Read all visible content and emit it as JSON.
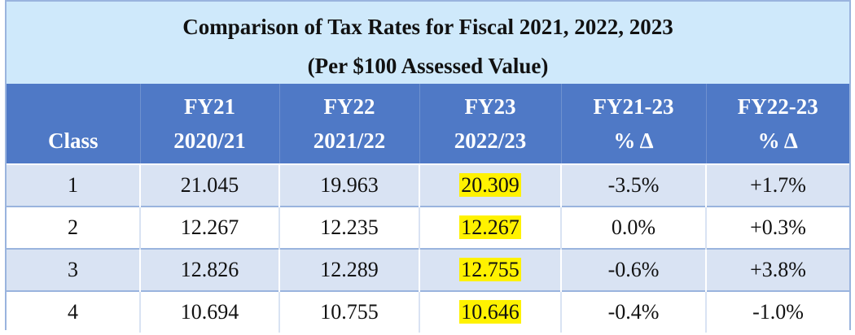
{
  "title": {
    "line1": "Comparison of Tax Rates for Fiscal 2021, 2022, 2023",
    "line2": "(Per $100 Assessed Value)"
  },
  "headers": {
    "class": "Class",
    "fy21_top": "FY21",
    "fy21_bottom": "2020/21",
    "fy22_top": "FY22",
    "fy22_bottom": "2021/22",
    "fy23_top": "FY23",
    "fy23_bottom": "2022/23",
    "chg2123_top": "FY21-23",
    "chg2123_bottom": "% Δ",
    "chg2223_top": "FY22-23",
    "chg2223_bottom": "% Δ"
  },
  "rows": [
    {
      "class": "1",
      "fy21": "21.045",
      "fy22": "19.963",
      "fy23": "20.309",
      "chg2123": "-3.5%",
      "chg2223": "+1.7%"
    },
    {
      "class": "2",
      "fy21": "12.267",
      "fy22": "12.235",
      "fy23": "12.267",
      "chg2123": "0.0%",
      "chg2223": "+0.3%"
    },
    {
      "class": "3",
      "fy21": "12.826",
      "fy22": "12.289",
      "fy23": "12.755",
      "chg2123": "-0.6%",
      "chg2223": "+3.8%"
    },
    {
      "class": "4",
      "fy21": "10.694",
      "fy22": "10.755",
      "fy23": "10.646",
      "chg2123": "-0.4%",
      "chg2223": "-1.0%"
    }
  ],
  "colors": {
    "title_bg": "#cfe9fb",
    "header_bg": "#4f79c6",
    "row_alt_bg": "#d9e3f3",
    "highlight": "#fff200",
    "border": "#9ab4de"
  }
}
